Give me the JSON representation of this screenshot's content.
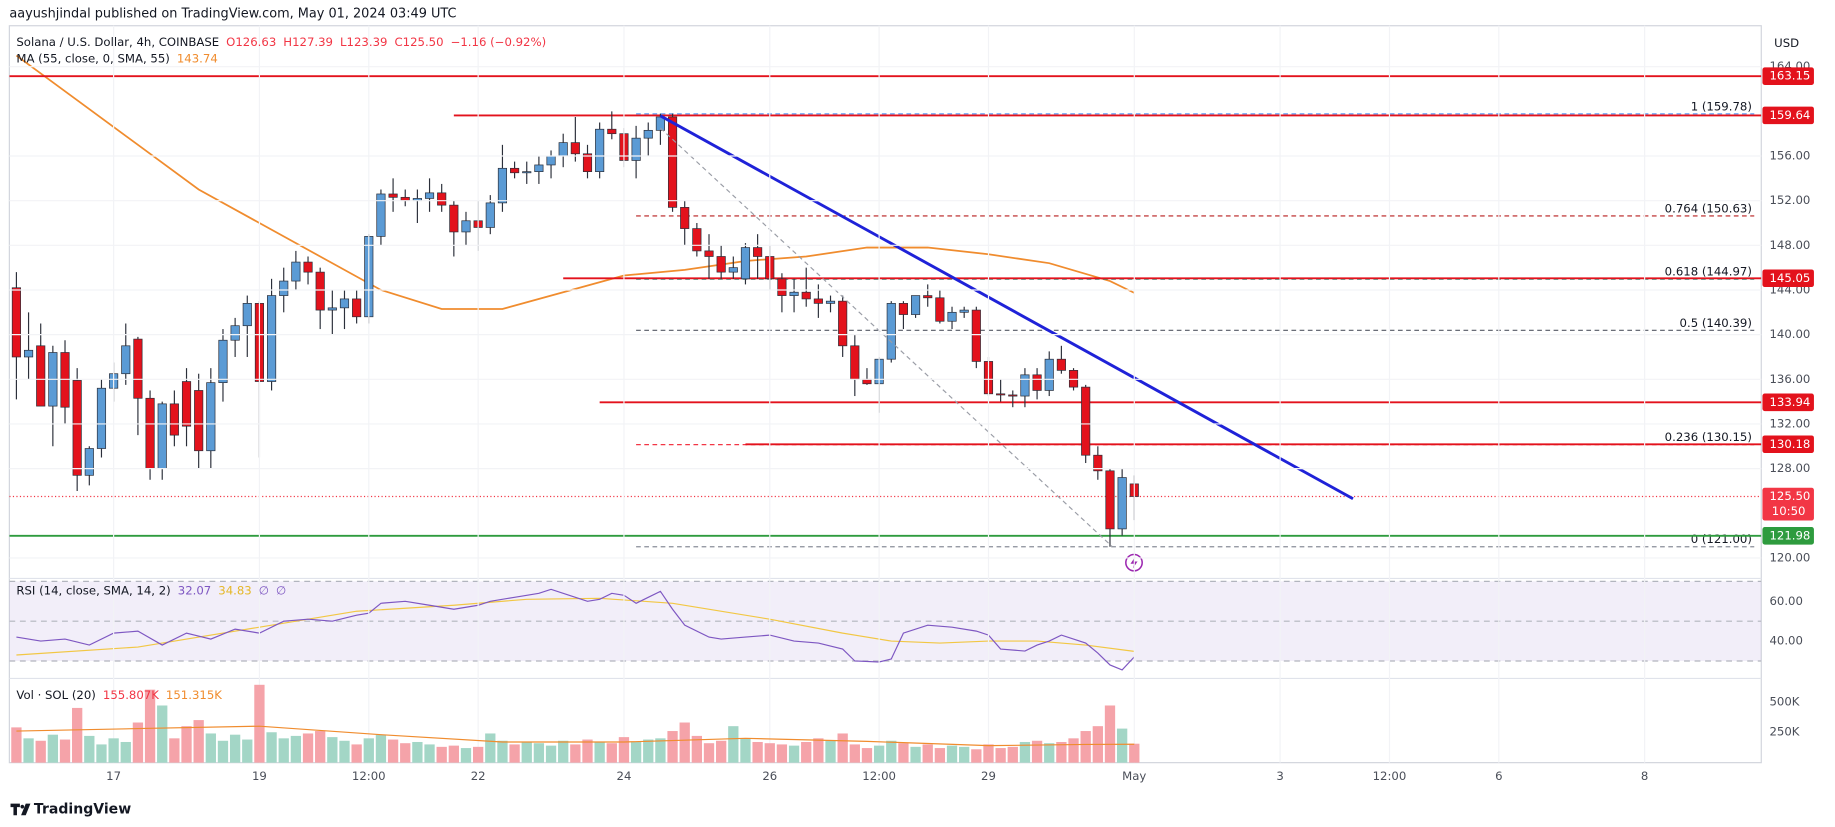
{
  "chart_data": {
    "type": "candlestick",
    "attribution": "aayushjindal published on TradingView.com, May 01, 2024 03:49 UTC",
    "currency": "USD",
    "brand": "TradingView",
    "legend": [
      {
        "items": [
          {
            "text": "Solana / U.S. Dollar, 4h, COINBASE",
            "color": "#131722"
          },
          {
            "text": "O126.63",
            "color": "#f23645"
          },
          {
            "text": "H127.39",
            "color": "#f23645"
          },
          {
            "text": "L123.39",
            "color": "#f23645"
          },
          {
            "text": "C125.50",
            "color": "#f23645"
          },
          {
            "text": "−1.16 (−0.92%)",
            "color": "#f23645"
          }
        ]
      },
      {
        "items": [
          {
            "text": "MA (55, close, 0, SMA, 55)",
            "color": "#131722"
          },
          {
            "text": "143.74",
            "color": "#f08c2e"
          }
        ]
      }
    ],
    "up_color": "#5b9bd5",
    "down_color": "#e3121c",
    "wick_color": "#2b2f3a",
    "x": [
      0,
      1,
      2,
      3,
      4,
      5,
      6,
      7,
      8,
      9,
      10,
      11,
      12,
      13,
      14,
      15,
      16,
      17,
      18,
      19,
      20,
      21,
      22,
      23,
      24,
      25,
      26,
      27,
      28,
      29,
      30,
      31,
      32,
      33,
      34,
      35,
      36,
      37,
      38,
      39,
      40,
      41,
      42,
      43,
      44,
      45,
      46,
      47,
      48,
      49,
      50,
      51,
      52,
      53,
      54,
      55,
      56,
      57,
      58,
      59,
      60,
      61,
      62,
      63,
      64,
      65,
      66,
      67,
      68,
      69,
      70,
      71,
      72,
      73,
      74,
      75,
      76,
      77,
      78,
      79,
      80,
      81,
      82,
      83,
      84,
      85,
      86,
      87,
      88,
      89,
      90,
      91,
      92
    ],
    "open": [
      144.2,
      138.0,
      139.0,
      133.6,
      138.4,
      135.9,
      127.4,
      129.8,
      135.2,
      136.5,
      139.6,
      134.3,
      128,
      133.8,
      135.8,
      135,
      129.6,
      135.7,
      139.5,
      140.8,
      142.8,
      135.8,
      143.5,
      144.8,
      146.5,
      145.6,
      142.2,
      142.4,
      143.2,
      141.6,
      148.8,
      152.6,
      152.3,
      152,
      152.2,
      152.7,
      151.6,
      149.2,
      150.2,
      149.6,
      151.8,
      154.9,
      154.5,
      154.6,
      155.2,
      156.0,
      157.2,
      156.2,
      154.6,
      158.4,
      158,
      155.6,
      157.6,
      158.3,
      159.5,
      151.4,
      149.5,
      147.5,
      147.0,
      145.6,
      145.0,
      147.8,
      147,
      145,
      143.5,
      143.8,
      143.2,
      142.8,
      143,
      139,
      136,
      135.6,
      137.8,
      142.8,
      141.8,
      143.5,
      143.3,
      141.2,
      142,
      142.2,
      137.6,
      134.7,
      134.6,
      134.5,
      136.4,
      135,
      137.8,
      136.8,
      135.3,
      129.2,
      127.8,
      122.6,
      126.63
    ],
    "high": [
      145.6,
      142,
      141,
      139,
      139.5,
      137,
      130,
      136,
      137.5,
      141,
      139.8,
      135,
      134,
      135,
      137,
      136.5,
      137,
      140.5,
      141.5,
      143.5,
      143,
      145,
      146,
      147.5,
      147,
      146,
      144,
      144,
      144,
      149,
      153,
      154,
      153,
      153,
      154,
      153.5,
      152,
      151,
      152,
      152.5,
      157,
      155.5,
      155.5,
      156,
      156.5,
      158,
      159.5,
      157,
      159,
      160,
      158.5,
      158.7,
      159,
      159.8,
      159.8,
      152,
      150,
      149,
      148,
      147,
      148.2,
      149,
      148,
      145.5,
      145,
      146,
      144.5,
      143.5,
      143.5,
      140,
      137,
      138,
      143,
      143,
      143.5,
      144.5,
      144,
      142.5,
      142.5,
      142.5,
      138,
      136,
      135,
      137,
      137,
      138.5,
      139,
      137,
      135.5,
      130,
      128,
      128,
      127.39
    ],
    "low": [
      134.2,
      136,
      134,
      130,
      132,
      126,
      126.5,
      129,
      134,
      135.5,
      131,
      127,
      127,
      130,
      130,
      128,
      128,
      134,
      138,
      138,
      129,
      135,
      142,
      144,
      144.5,
      140.5,
      140,
      140.5,
      141,
      141,
      148,
      151,
      151.5,
      150,
      151,
      151,
      147,
      148,
      147.5,
      149,
      151,
      154,
      153.5,
      153.5,
      154,
      155,
      155.5,
      154,
      154,
      157.5,
      155,
      154,
      156,
      157,
      151,
      148,
      147,
      145,
      145,
      145,
      144.5,
      145,
      144,
      142,
      142,
      142.5,
      141.5,
      142,
      138,
      134.5,
      135.5,
      133,
      137.5,
      140.5,
      141.5,
      142.5,
      141,
      140.5,
      141.5,
      137,
      134.5,
      134,
      133.5,
      133.5,
      134.2,
      134.5,
      136.5,
      135,
      128.5,
      127,
      121.0,
      122,
      123.39
    ],
    "close": [
      138.0,
      138.6,
      133.6,
      138.4,
      133.5,
      127.4,
      129.8,
      135.2,
      136.5,
      139.0,
      134.3,
      128.0,
      133.8,
      131.0,
      131.8,
      129.6,
      135.7,
      139.5,
      140.8,
      142.8,
      135.8,
      143.5,
      144.8,
      146.5,
      145.6,
      142.2,
      142.4,
      143.2,
      141.6,
      148.8,
      152.6,
      152.3,
      152.0,
      152.2,
      152.7,
      151.6,
      149.2,
      150.2,
      149.6,
      151.8,
      154.9,
      154.5,
      154.6,
      155.2,
      156.0,
      157.2,
      156.2,
      154.6,
      158.4,
      158.0,
      155.6,
      157.6,
      158.3,
      159.5,
      151.4,
      149.5,
      147.5,
      147.0,
      145.6,
      146.0,
      147.8,
      147.0,
      145.0,
      143.5,
      143.8,
      143.2,
      142.8,
      143.0,
      139.0,
      136.0,
      135.6,
      137.8,
      142.8,
      141.8,
      143.5,
      143.3,
      141.2,
      142.0,
      142.2,
      137.6,
      134.7,
      134.6,
      134.5,
      136.4,
      135.0,
      137.8,
      136.8,
      135.3,
      129.2,
      127.8,
      122.6,
      127.2,
      125.5
    ],
    "xlim": [
      -0.58,
      143.6
    ],
    "xticks": [
      {
        "value": 8,
        "label": "17"
      },
      {
        "value": 20,
        "label": "19"
      },
      {
        "value": 29,
        "label": "12:00"
      },
      {
        "value": 38,
        "label": "22"
      },
      {
        "value": 50,
        "label": "24"
      },
      {
        "value": 62,
        "label": "26"
      },
      {
        "value": 71,
        "label": "12:00"
      },
      {
        "value": 80,
        "label": "29"
      },
      {
        "value": 92,
        "label": "May"
      },
      {
        "value": 104,
        "label": "3"
      },
      {
        "value": 113,
        "label": "12:00"
      },
      {
        "value": 122,
        "label": "6"
      },
      {
        "value": 134,
        "label": "8"
      }
    ],
    "ylim": [
      118.32,
      167.67
    ],
    "yticks": [
      {
        "value": 164,
        "label": "164.00"
      },
      {
        "value": 156,
        "label": "156.00"
      },
      {
        "value": 152,
        "label": "152.00"
      },
      {
        "value": 148,
        "label": "148.00"
      },
      {
        "value": 144,
        "label": "144.00"
      },
      {
        "value": 140,
        "label": "140.00"
      },
      {
        "value": 136,
        "label": "136.00"
      },
      {
        "value": 132,
        "label": "132.00"
      },
      {
        "value": 128,
        "label": "128.00"
      },
      {
        "value": 120,
        "label": "120.00"
      }
    ],
    "ma": {
      "color": "#f08c2e",
      "x": [
        0,
        5,
        10,
        15,
        20,
        25,
        30,
        35,
        40,
        45,
        50,
        55,
        60,
        65,
        70,
        75,
        80,
        85,
        90,
        92
      ],
      "values": [
        165,
        161,
        157,
        153,
        150,
        147,
        144,
        142.3,
        142.3,
        143.8,
        145.3,
        145.8,
        146.6,
        147,
        147.8,
        147.8,
        147.2,
        146.4,
        144.8,
        143.74
      ]
    },
    "levels": [
      {
        "value": 163.15,
        "label": "163.15",
        "color": "#e3121c"
      },
      {
        "value": 159.64,
        "label": "159.64",
        "color": "#e3121c",
        "from": 36
      },
      {
        "value": 145.05,
        "label": "145.05",
        "color": "#e3121c",
        "from": 45
      },
      {
        "value": 133.94,
        "label": "133.94",
        "color": "#e3121c",
        "from": 48
      },
      {
        "value": 130.18,
        "label": "130.18",
        "color": "#e3121c",
        "from": 60
      },
      {
        "value": 121.98,
        "label": "121.98",
        "color": "#2e9b3e"
      }
    ],
    "last": {
      "value": 125.5,
      "label": "125.50",
      "countdown": "10:50",
      "color": "#f23645"
    },
    "fib": {
      "from": 51,
      "levels": [
        {
          "value": 159.78,
          "label": "1 (159.78)",
          "color": "#5b9cf6"
        },
        {
          "value": 150.63,
          "label": "0.764 (150.63)",
          "color": "#b71c1c"
        },
        {
          "value": 144.97,
          "label": "0.618 (144.97)",
          "color": "#089981"
        },
        {
          "value": 140.39,
          "label": "0.5 (140.39)",
          "color": "#555a66"
        },
        {
          "value": 130.15,
          "label": "0.236 (130.15)",
          "color": "#f23645"
        },
        {
          "value": 121.0,
          "label": "0 (121.00)",
          "color": "#8a8e99"
        }
      ]
    },
    "trendlines": [
      {
        "color": "#1f22d8",
        "style": "solid",
        "points": [
          [
            53,
            159.6
          ],
          [
            110,
            125.3
          ]
        ]
      },
      {
        "color": "#9a9da6",
        "style": "dashed",
        "points": [
          [
            53,
            158.5
          ],
          [
            90.2,
            121
          ]
        ]
      }
    ],
    "rsi": {
      "legend": [
        {
          "text": "RSI (14, close, SMA, 14, 2)",
          "color": "#131722"
        },
        {
          "text": "32.07",
          "color": "#7e57c2"
        },
        {
          "text": "34.83",
          "color": "#e5b82a"
        },
        {
          "text": "∅",
          "color": "#7e57c2"
        },
        {
          "text": "∅",
          "color": "#7e57c2"
        }
      ],
      "color": "#7e57c2",
      "x": [
        0,
        2,
        4,
        6,
        8,
        10,
        12,
        14,
        16,
        18,
        20,
        22,
        24,
        26,
        28,
        29,
        30,
        32,
        34,
        36,
        38,
        39,
        41,
        43,
        44,
        46,
        47,
        48,
        49,
        50,
        51,
        52,
        53,
        54,
        55,
        57,
        58,
        60,
        62,
        64,
        66,
        68,
        69,
        71,
        72,
        73,
        75,
        77,
        79,
        80,
        81,
        83,
        84,
        85,
        86,
        88,
        89,
        90,
        91,
        92
      ],
      "values": [
        42,
        40,
        41,
        38,
        44,
        45,
        38,
        44,
        41,
        46,
        44,
        50,
        51,
        50,
        53,
        54,
        59,
        60,
        58,
        56,
        58,
        60,
        62,
        64,
        66,
        62,
        60,
        61,
        64,
        63,
        59,
        62,
        65,
        56,
        48,
        42,
        41,
        42,
        43,
        40,
        39,
        36,
        30,
        29.5,
        31,
        44,
        48,
        47,
        45,
        43,
        36,
        35,
        38,
        40,
        43,
        39,
        34,
        28,
        25.5,
        32.07
      ],
      "ma": {
        "color": "#f2c744",
        "x": [
          0,
          10,
          20,
          28,
          36,
          42,
          48,
          54,
          62,
          68,
          72,
          76,
          80,
          84,
          88,
          92
        ],
        "values": [
          33,
          37,
          47,
          55,
          58,
          61,
          61.5,
          59,
          51,
          44,
          40,
          39,
          40,
          40,
          38,
          34.83
        ]
      },
      "ylim": [
        22.4,
        70.6
      ],
      "yticks": [
        {
          "value": 60,
          "label": "60.00"
        },
        {
          "value": 40,
          "label": "40.00"
        }
      ],
      "bands": [
        70,
        50,
        30
      ]
    },
    "volume": {
      "legend": [
        {
          "text": "Vol · SOL (20)",
          "color": "#131722"
        },
        {
          "text": "155.807K",
          "color": "#f23645"
        },
        {
          "text": "151.315K",
          "color": "#f08c2e"
        }
      ],
      "up_color": "#a3d6c6",
      "down_color": "#f5a3a9",
      "values": [
        290,
        200,
        180,
        230,
        190,
        450,
        220,
        150,
        200,
        170,
        330,
        600,
        470,
        200,
        300,
        350,
        240,
        180,
        230,
        190,
        640,
        250,
        200,
        220,
        240,
        260,
        210,
        180,
        150,
        200,
        230,
        190,
        160,
        170,
        150,
        130,
        140,
        120,
        130,
        240,
        180,
        150,
        170,
        160,
        140,
        180,
        150,
        190,
        170,
        160,
        210,
        170,
        190,
        200,
        260,
        330,
        220,
        160,
        180,
        300,
        200,
        170,
        160,
        150,
        140,
        170,
        200,
        180,
        240,
        150,
        120,
        140,
        180,
        160,
        130,
        150,
        120,
        140,
        130,
        110,
        150,
        120,
        130,
        170,
        180,
        160,
        170,
        200,
        260,
        300,
        470,
        280,
        155.807
      ],
      "ma": {
        "color": "#f08c2e",
        "x": [
          0,
          10,
          20,
          30,
          40,
          50,
          60,
          70,
          80,
          88,
          92
        ],
        "values": [
          260,
          280,
          300,
          230,
          170,
          170,
          200,
          175,
          140,
          150,
          151.315
        ]
      },
      "ylim": [
        0,
        673
      ],
      "yticks": [
        {
          "value": 250,
          "label": "250K"
        },
        {
          "value": 500,
          "label": "500K"
        }
      ]
    }
  }
}
